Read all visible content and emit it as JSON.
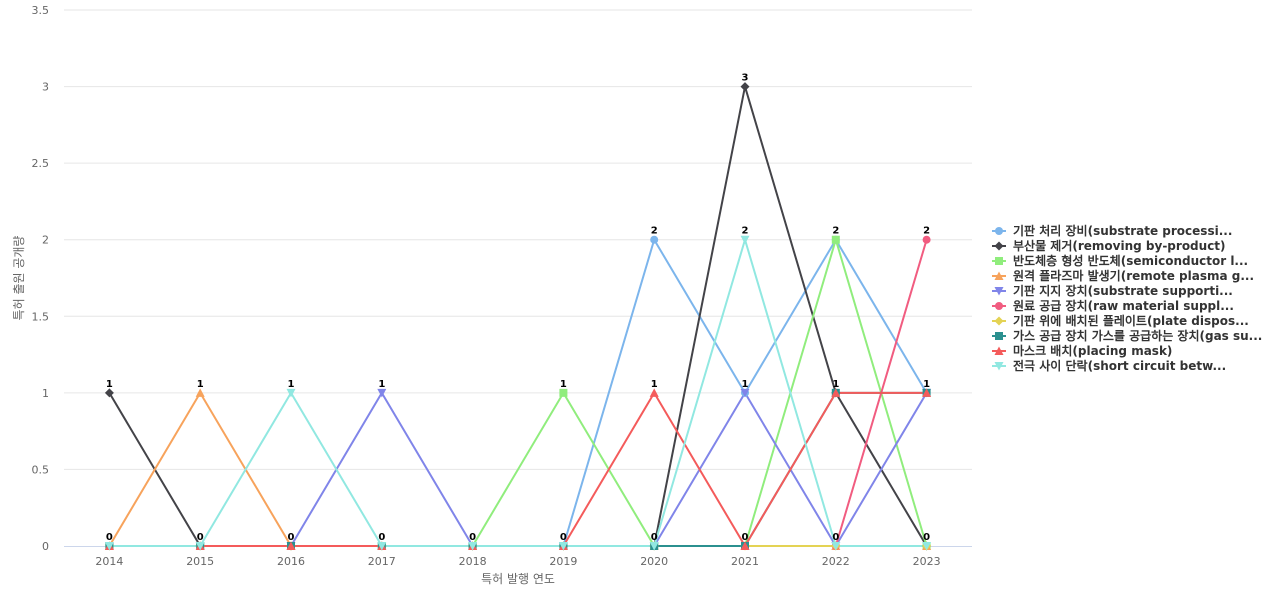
{
  "chart_data": {
    "type": "line",
    "x": [
      "2014",
      "2015",
      "2016",
      "2017",
      "2018",
      "2019",
      "2020",
      "2021",
      "2022",
      "2023"
    ],
    "xlabel": "특허 발행 연도",
    "ylabel": "특허 출원 공개량",
    "ylim": [
      0,
      3.5
    ],
    "yticks": [
      "0",
      "0.5",
      "1",
      "1.5",
      "2",
      "2.5",
      "3",
      "3.5"
    ],
    "grid": true,
    "legend_position": "right",
    "series": [
      {
        "name": "기판 처리 장비(substrate processi...",
        "color": "#7cb5ec",
        "marker": "circle",
        "values": [
          0,
          0,
          0,
          0,
          0,
          0,
          2,
          1,
          2,
          1
        ]
      },
      {
        "name": "부산물 제거(removing by-product)",
        "color": "#434348",
        "marker": "diamond",
        "values": [
          1,
          0,
          0,
          0,
          0,
          0,
          0,
          3,
          1,
          0
        ]
      },
      {
        "name": "반도체층 형성 반도체(semiconductor l...",
        "color": "#90ed7d",
        "marker": "square",
        "values": [
          0,
          0,
          0,
          0,
          0,
          1,
          0,
          0,
          2,
          0
        ]
      },
      {
        "name": "원격 플라즈마 발생기(remote plasma g...",
        "color": "#f7a35c",
        "marker": "triangle",
        "values": [
          0,
          1,
          0,
          0,
          0,
          0,
          0,
          0,
          0,
          0
        ]
      },
      {
        "name": "기판 지지 장치(substrate supporti...",
        "color": "#8085e9",
        "marker": "triangle-down",
        "values": [
          0,
          0,
          0,
          1,
          0,
          0,
          0,
          1,
          0,
          1
        ]
      },
      {
        "name": "원료 공급 장치(raw material suppl...",
        "color": "#f15c80",
        "marker": "circle",
        "values": [
          0,
          0,
          0,
          0,
          0,
          0,
          0,
          0,
          0,
          2
        ]
      },
      {
        "name": "기판 위에 배치된 플레이트(plate dispos...",
        "color": "#e4d354",
        "marker": "diamond",
        "values": [
          0,
          0,
          0,
          0,
          0,
          0,
          0,
          0,
          0,
          0
        ]
      },
      {
        "name": "가스 공급 장치 가스를 공급하는 장치(gas su...",
        "color": "#2b908f",
        "marker": "square",
        "values": [
          0,
          0,
          0,
          0,
          0,
          0,
          0,
          0,
          1,
          1
        ]
      },
      {
        "name": "마스크 배치(placing mask)",
        "color": "#f45b5b",
        "marker": "triangle",
        "values": [
          0,
          0,
          0,
          0,
          0,
          0,
          1,
          0,
          1,
          1
        ]
      },
      {
        "name": "전극 사이 단락(short circuit betw...",
        "color": "#91e8e1",
        "marker": "triangle-down",
        "values": [
          0,
          0,
          1,
          0,
          0,
          0,
          0,
          2,
          0,
          0
        ]
      }
    ],
    "data_labels": [
      {
        "x": "2014",
        "text": "1",
        "value": 1
      },
      {
        "x": "2014",
        "text": "0",
        "value": 0
      },
      {
        "x": "2015",
        "text": "1",
        "value": 1
      },
      {
        "x": "2015",
        "text": "0",
        "value": 0
      },
      {
        "x": "2016",
        "text": "1",
        "value": 1
      },
      {
        "x": "2016",
        "text": "0",
        "value": 0
      },
      {
        "x": "2017",
        "text": "1",
        "value": 1
      },
      {
        "x": "2017",
        "text": "0",
        "value": 0
      },
      {
        "x": "2018",
        "text": "0",
        "value": 0
      },
      {
        "x": "2019",
        "text": "1",
        "value": 1
      },
      {
        "x": "2019",
        "text": "0",
        "value": 0
      },
      {
        "x": "2020",
        "text": "2",
        "value": 2
      },
      {
        "x": "2020",
        "text": "1",
        "value": 1
      },
      {
        "x": "2020",
        "text": "0",
        "value": 0
      },
      {
        "x": "2021",
        "text": "3",
        "value": 3
      },
      {
        "x": "2021",
        "text": "2",
        "value": 2
      },
      {
        "x": "2021",
        "text": "1",
        "value": 1
      },
      {
        "x": "2021",
        "text": "0",
        "value": 0
      },
      {
        "x": "2022",
        "text": "2",
        "value": 2
      },
      {
        "x": "2022",
        "text": "1",
        "value": 1
      },
      {
        "x": "2022",
        "text": "0",
        "value": 0
      },
      {
        "x": "2023",
        "text": "2",
        "value": 2
      },
      {
        "x": "2023",
        "text": "1",
        "value": 1
      },
      {
        "x": "2023",
        "text": "0",
        "value": 0
      }
    ]
  }
}
